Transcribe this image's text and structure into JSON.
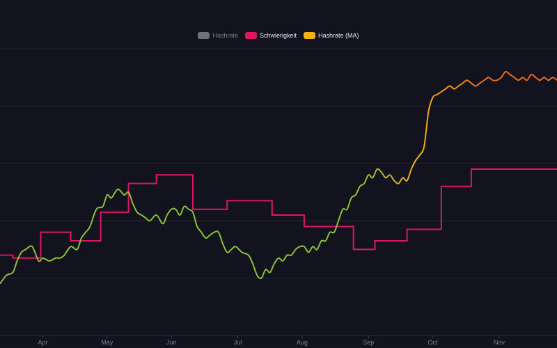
{
  "chart_data": {
    "type": "line",
    "legend": [
      {
        "name": "Hashrate",
        "color": "#6f717b",
        "enabled": false
      },
      {
        "name": "Schwierigkeit",
        "color": "#e0175f",
        "enabled": true
      },
      {
        "name": "Hashrate (MA)",
        "color": "#f5b014",
        "enabled": true
      }
    ],
    "legend_position": "top-center",
    "x_labels": [
      "Apr",
      "May",
      "Jun",
      "Jul",
      "Aug",
      "Sep",
      "Oct",
      "Nov"
    ],
    "xlim": [
      0,
      260
    ],
    "ylim": [
      0,
      100
    ],
    "grid": true,
    "y_grid_values": [
      20,
      40,
      60,
      80,
      100
    ],
    "x_tick_values": [
      20,
      50,
      80,
      111,
      141,
      172,
      202,
      233
    ],
    "series": [
      {
        "name": "Schwierigkeit",
        "color": "#e0175f",
        "x": [
          0,
          6,
          19,
          33,
          47,
          60,
          73,
          90,
          106,
          127,
          142,
          165,
          175,
          190,
          206,
          220
        ],
        "y": [
          28,
          27,
          36,
          33,
          43,
          53,
          56,
          44,
          47,
          42,
          38,
          30,
          33,
          37,
          52,
          58
        ]
      },
      {
        "name": "Hashrate (MA)",
        "colors": [
          "#8ac23a",
          "#f5b014",
          "#f06a1c"
        ],
        "x": [
          0,
          3,
          6,
          8,
          10,
          12,
          15,
          18,
          20,
          23,
          26,
          28,
          30,
          33,
          36,
          38,
          40,
          42,
          45,
          48,
          50,
          52,
          55,
          58,
          60,
          62,
          64,
          66,
          68,
          70,
          73,
          76,
          78,
          80,
          82,
          84,
          86,
          88,
          90,
          92,
          94,
          96,
          98,
          100,
          102,
          104,
          106,
          108,
          110,
          113,
          116,
          118,
          120,
          122,
          124,
          126,
          128,
          130,
          132,
          134,
          136,
          138,
          140,
          142,
          144,
          146,
          148,
          150,
          152,
          154,
          156,
          158,
          160,
          162,
          164,
          166,
          168,
          170,
          172,
          174,
          176,
          178,
          180,
          182,
          184,
          186,
          188,
          190,
          192,
          194,
          196,
          198,
          200,
          202,
          204,
          206,
          208,
          210,
          212,
          214,
          216,
          218,
          220,
          222,
          224,
          226,
          228,
          230,
          232,
          234,
          236,
          238,
          240,
          242,
          244,
          246,
          248,
          250,
          252,
          254,
          256,
          258,
          260
        ],
        "y": [
          18,
          21,
          22,
          26,
          29,
          30,
          31,
          26,
          27,
          26,
          27,
          27,
          28,
          31,
          30,
          34,
          36,
          38,
          44,
          45,
          49,
          48,
          51,
          49,
          50,
          46,
          43,
          42,
          41,
          40,
          42,
          39,
          42,
          44,
          44,
          42,
          45,
          44,
          43,
          38,
          36,
          34,
          35,
          36,
          36,
          32,
          29,
          30,
          31,
          29,
          28,
          25,
          21,
          20,
          23,
          22,
          25,
          27,
          26,
          28,
          28,
          30,
          31,
          31,
          29,
          31,
          30,
          33,
          33,
          36,
          36,
          40,
          44,
          44,
          48,
          49,
          52,
          53,
          56,
          55,
          58,
          57,
          55,
          56,
          54,
          53,
          55,
          54,
          58,
          61,
          63,
          66,
          78,
          83,
          84,
          85,
          86,
          87,
          86,
          87,
          88,
          89,
          88,
          87,
          88,
          89,
          90,
          89,
          89,
          90,
          92,
          91,
          90,
          89,
          90,
          89,
          91,
          90,
          89,
          90,
          89,
          90,
          89
        ]
      }
    ]
  }
}
